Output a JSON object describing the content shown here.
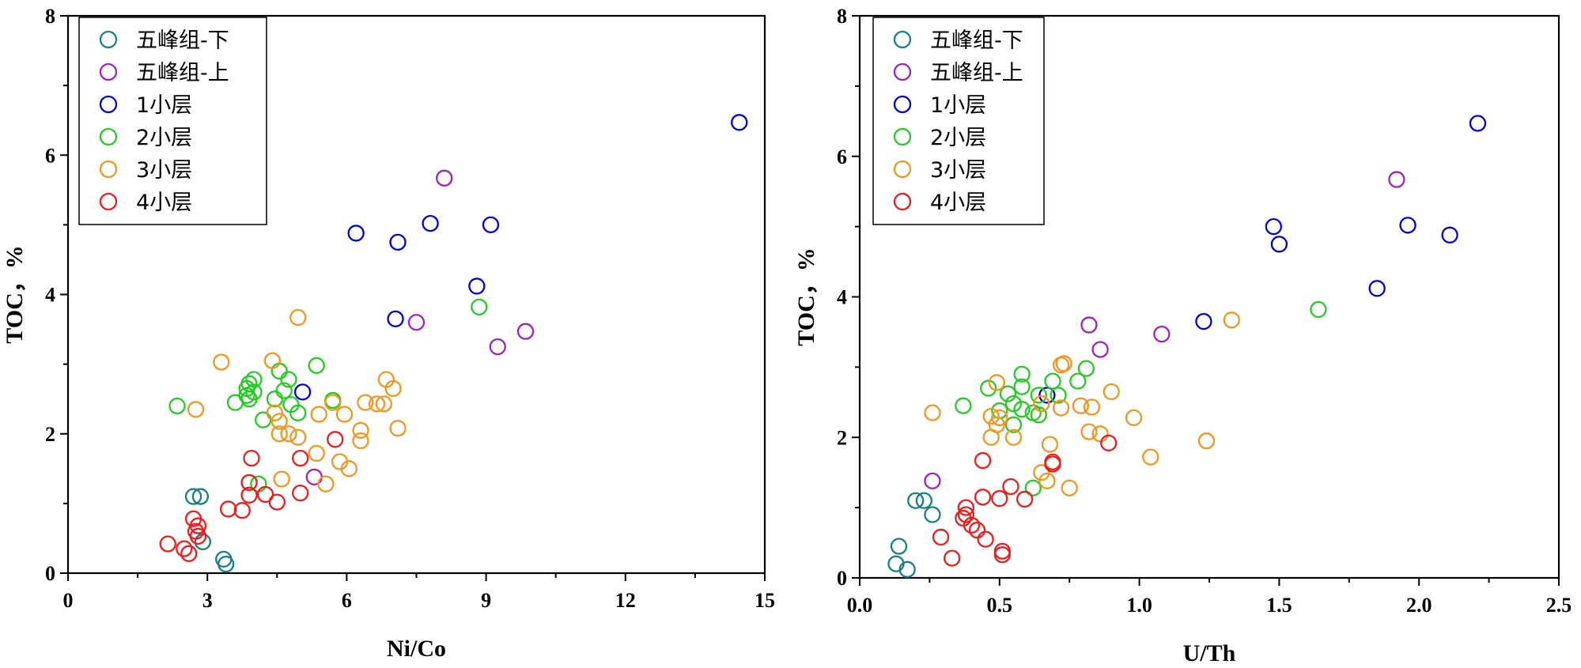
{
  "chart_data": [
    {
      "type": "scatter",
      "xlabel": "Ni/Co",
      "ylabel": "TOC，%",
      "xlim": [
        0,
        15
      ],
      "ylim": [
        0,
        8
      ],
      "xticks": [
        0,
        3,
        6,
        9,
        12,
        15
      ],
      "xtick_labels": [
        "0",
        "3",
        "6",
        "9",
        "12",
        "15"
      ],
      "yticks": [
        0,
        2,
        4,
        6,
        8
      ],
      "ytick_labels": [
        "0",
        "2",
        "4",
        "6",
        "8"
      ],
      "legend_position": "top-left",
      "series": [
        {
          "name": "五峰组-下",
          "color": "#178080",
          "points": [
            [
              2.7,
              1.1
            ],
            [
              2.85,
              1.1
            ],
            [
              2.9,
              0.45
            ],
            [
              3.35,
              0.2
            ],
            [
              3.4,
              0.13
            ]
          ]
        },
        {
          "name": "五峰组-上",
          "color": "#a020c0",
          "points": [
            [
              8.1,
              5.67
            ],
            [
              7.5,
              3.6
            ],
            [
              9.85,
              3.47
            ],
            [
              9.25,
              3.25
            ],
            [
              5.3,
              1.38
            ]
          ]
        },
        {
          "name": "1小层",
          "color": "#0000dd",
          "points": [
            [
              14.45,
              6.47
            ],
            [
              9.1,
              5.0
            ],
            [
              7.8,
              5.02
            ],
            [
              6.2,
              4.88
            ],
            [
              7.1,
              4.75
            ],
            [
              8.8,
              4.12
            ],
            [
              7.05,
              3.65
            ],
            [
              5.05,
              2.6
            ]
          ]
        },
        {
          "name": "2小层",
          "color": "#22cc22",
          "points": [
            [
              8.85,
              3.82
            ],
            [
              5.35,
              2.98
            ],
            [
              4.55,
              2.9
            ],
            [
              4.75,
              2.78
            ],
            [
              3.85,
              2.65
            ],
            [
              3.9,
              2.72
            ],
            [
              4.0,
              2.78
            ],
            [
              3.85,
              2.55
            ],
            [
              4.0,
              2.6
            ],
            [
              4.65,
              2.62
            ],
            [
              4.45,
              2.5
            ],
            [
              4.8,
              2.42
            ],
            [
              3.6,
              2.45
            ],
            [
              2.35,
              2.4
            ],
            [
              3.9,
              2.5
            ],
            [
              4.95,
              2.3
            ],
            [
              4.2,
              2.2
            ],
            [
              5.7,
              2.48
            ],
            [
              4.1,
              1.28
            ]
          ]
        },
        {
          "name": "3小层",
          "color": "#f5951e",
          "points": [
            [
              4.95,
              3.67
            ],
            [
              3.3,
              3.03
            ],
            [
              4.4,
              3.05
            ],
            [
              6.85,
              2.78
            ],
            [
              7.0,
              2.65
            ],
            [
              5.7,
              2.45
            ],
            [
              6.4,
              2.45
            ],
            [
              6.65,
              2.43
            ],
            [
              6.8,
              2.43
            ],
            [
              2.75,
              2.35
            ],
            [
              4.45,
              2.3
            ],
            [
              5.4,
              2.28
            ],
            [
              5.95,
              2.28
            ],
            [
              4.55,
              2.18
            ],
            [
              6.3,
              2.05
            ],
            [
              7.1,
              2.08
            ],
            [
              4.55,
              2.0
            ],
            [
              4.75,
              2.0
            ],
            [
              4.95,
              1.95
            ],
            [
              6.3,
              1.9
            ],
            [
              5.35,
              1.72
            ],
            [
              5.85,
              1.6
            ],
            [
              6.05,
              1.5
            ],
            [
              4.6,
              1.35
            ],
            [
              5.55,
              1.28
            ]
          ]
        },
        {
          "name": "4小层",
          "color": "#ee1c1c",
          "points": [
            [
              3.95,
              1.65
            ],
            [
              5.0,
              1.65
            ],
            [
              3.9,
              1.3
            ],
            [
              3.9,
              1.12
            ],
            [
              4.25,
              1.13
            ],
            [
              4.5,
              1.02
            ],
            [
              5.0,
              1.15
            ],
            [
              3.45,
              0.92
            ],
            [
              3.75,
              0.9
            ],
            [
              2.7,
              0.78
            ],
            [
              2.8,
              0.68
            ],
            [
              2.75,
              0.6
            ],
            [
              2.8,
              0.53
            ],
            [
              2.15,
              0.42
            ],
            [
              2.5,
              0.35
            ],
            [
              2.6,
              0.28
            ],
            [
              5.75,
              1.92
            ]
          ]
        }
      ]
    },
    {
      "type": "scatter",
      "xlabel": "U/Th",
      "ylabel": "TOC，%",
      "xlim": [
        0,
        2.5
      ],
      "ylim": [
        0,
        8
      ],
      "xticks": [
        0,
        0.5,
        1.0,
        1.5,
        2.0,
        2.5
      ],
      "xtick_labels": [
        "0.0",
        "0.5",
        "1.0",
        "1.5",
        "2.0",
        "2.5"
      ],
      "yticks": [
        0,
        2,
        4,
        6,
        8
      ],
      "ytick_labels": [
        "0",
        "2",
        "4",
        "6",
        "8"
      ],
      "legend_position": "top-left",
      "series": [
        {
          "name": "五峰组-下",
          "color": "#178080",
          "points": [
            [
              0.2,
              1.1
            ],
            [
              0.23,
              1.1
            ],
            [
              0.26,
              0.9
            ],
            [
              0.14,
              0.45
            ],
            [
              0.13,
              0.2
            ],
            [
              0.17,
              0.12
            ]
          ]
        },
        {
          "name": "五峰组-上",
          "color": "#a020c0",
          "points": [
            [
              1.92,
              5.67
            ],
            [
              0.82,
              3.6
            ],
            [
              1.08,
              3.47
            ],
            [
              0.86,
              3.25
            ],
            [
              0.26,
              1.38
            ]
          ]
        },
        {
          "name": "1小层",
          "color": "#0000dd",
          "points": [
            [
              2.21,
              6.47
            ],
            [
              1.48,
              5.0
            ],
            [
              1.5,
              4.75
            ],
            [
              1.96,
              5.02
            ],
            [
              2.11,
              4.88
            ],
            [
              1.85,
              4.12
            ],
            [
              1.23,
              3.65
            ],
            [
              0.67,
              2.6
            ]
          ]
        },
        {
          "name": "2小层",
          "color": "#22cc22",
          "points": [
            [
              1.64,
              3.82
            ],
            [
              0.58,
              2.9
            ],
            [
              0.81,
              2.98
            ],
            [
              0.78,
              2.8
            ],
            [
              0.69,
              2.8
            ],
            [
              0.58,
              2.72
            ],
            [
              0.46,
              2.7
            ],
            [
              0.53,
              2.62
            ],
            [
              0.64,
              2.6
            ],
            [
              0.71,
              2.6
            ],
            [
              0.37,
              2.45
            ],
            [
              0.55,
              2.48
            ],
            [
              0.58,
              2.4
            ],
            [
              0.5,
              2.38
            ],
            [
              0.62,
              2.35
            ],
            [
              0.64,
              2.32
            ],
            [
              0.55,
              2.18
            ],
            [
              0.62,
              1.28
            ]
          ]
        },
        {
          "name": "3小层",
          "color": "#f5951e",
          "points": [
            [
              1.33,
              3.67
            ],
            [
              0.72,
              3.03
            ],
            [
              0.73,
              3.05
            ],
            [
              0.49,
              2.78
            ],
            [
              0.9,
              2.65
            ],
            [
              0.26,
              2.35
            ],
            [
              0.47,
              2.3
            ],
            [
              0.5,
              2.28
            ],
            [
              0.65,
              2.48
            ],
            [
              0.72,
              2.42
            ],
            [
              0.79,
              2.45
            ],
            [
              0.83,
              2.43
            ],
            [
              0.49,
              2.18
            ],
            [
              0.55,
              2.0
            ],
            [
              0.47,
              2.0
            ],
            [
              0.82,
              2.08
            ],
            [
              0.86,
              2.05
            ],
            [
              0.98,
              2.28
            ],
            [
              1.24,
              1.95
            ],
            [
              0.68,
              1.9
            ],
            [
              1.04,
              1.72
            ],
            [
              0.65,
              1.5
            ],
            [
              0.67,
              1.38
            ],
            [
              0.75,
              1.28
            ]
          ]
        },
        {
          "name": "4小层",
          "color": "#ee1c1c",
          "points": [
            [
              0.89,
              1.92
            ],
            [
              0.69,
              1.65
            ],
            [
              0.44,
              1.67
            ],
            [
              0.54,
              1.3
            ],
            [
              0.44,
              1.15
            ],
            [
              0.5,
              1.13
            ],
            [
              0.59,
              1.12
            ],
            [
              0.38,
              1.0
            ],
            [
              0.38,
              0.9
            ],
            [
              0.37,
              0.85
            ],
            [
              0.4,
              0.75
            ],
            [
              0.42,
              0.68
            ],
            [
              0.45,
              0.55
            ],
            [
              0.29,
              0.58
            ],
            [
              0.51,
              0.38
            ],
            [
              0.51,
              0.33
            ],
            [
              0.33,
              0.28
            ],
            [
              0.69,
              1.62
            ]
          ]
        }
      ]
    }
  ]
}
